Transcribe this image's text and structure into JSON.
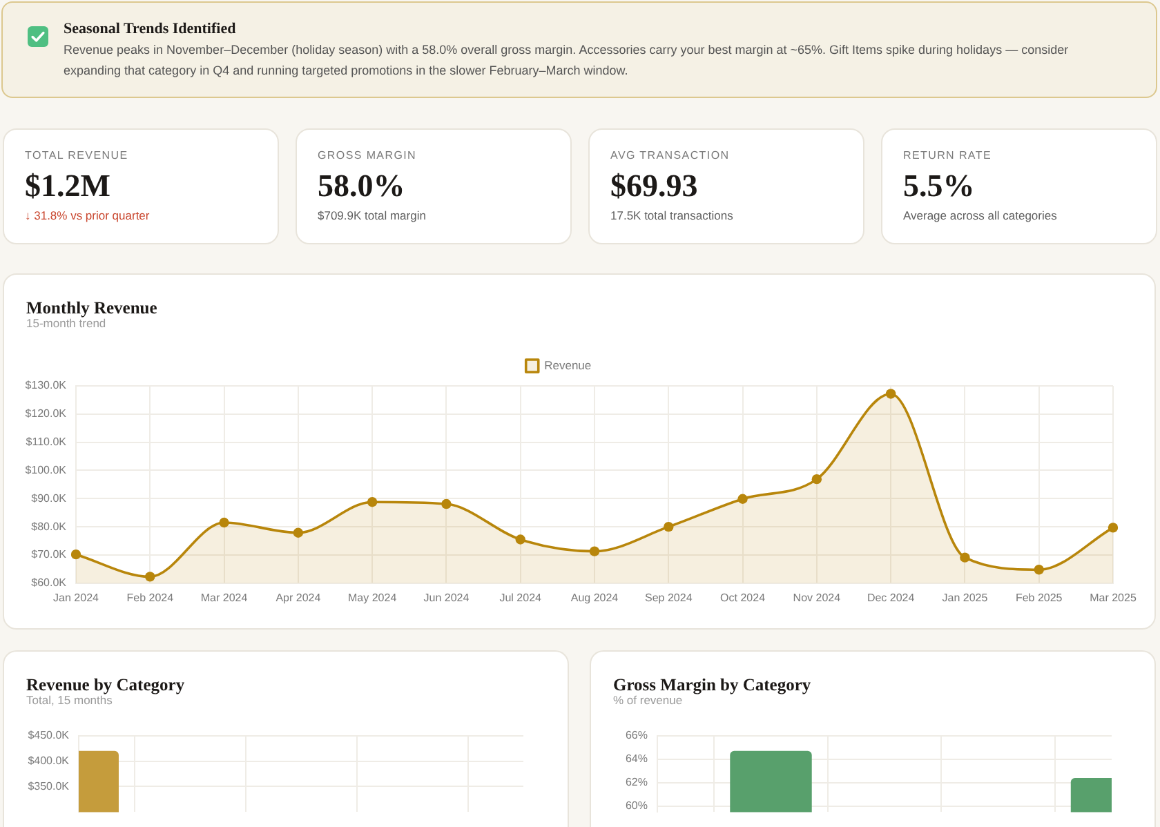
{
  "chart_data": [
    {
      "type": "other",
      "title": "Seasonal Trends Identified",
      "annotations": [
        "Revenue peaks in November–December (holiday season) with a 58.0% overall gross margin. Accessories carry your best margin at ~65%. Gift Items spike during holidays — consider expanding that category in Q4 and running targeted promotions in the slower February–March window."
      ]
    },
    {
      "type": "other",
      "title": "TOTAL REVENUE",
      "annotations": [
        "$1.2M",
        "↓ 31.8% vs prior quarter"
      ],
      "colors": [
        "#1c1917",
        "#c9472f"
      ]
    },
    {
      "type": "other",
      "title": "GROSS MARGIN",
      "annotations": [
        "58.0%",
        "$709.9K total margin"
      ],
      "colors": [
        "#1c1917",
        "#5f5f5f"
      ]
    },
    {
      "type": "other",
      "title": "AVG TRANSACTION",
      "annotations": [
        "$69.93",
        "17.5K total transactions"
      ],
      "colors": [
        "#1c1917",
        "#5f5f5f"
      ]
    },
    {
      "type": "other",
      "title": "RETURN RATE",
      "annotations": [
        "5.5%",
        "Average across all categories"
      ],
      "colors": [
        "#1c1917",
        "#5f5f5f"
      ]
    },
    {
      "type": "area",
      "title": "Monthly Revenue",
      "subtitle": "15-month trend",
      "categories": [
        "Jan 2024",
        "Feb 2024",
        "Mar 2024",
        "Apr 2024",
        "May 2024",
        "Jun 2024",
        "Jul 2024",
        "Aug 2024",
        "Sep 2024",
        "Oct 2024",
        "Nov 2024",
        "Dec 2024",
        "Jan 2025",
        "Feb 2025",
        "Mar 2025"
      ],
      "series": [
        {
          "name": "Revenue",
          "color": "#b8860b",
          "values": [
            70.2,
            62.3,
            81.5,
            77.9,
            88.8,
            88.1,
            75.5,
            71.3,
            80.0,
            89.9,
            96.9,
            127.2,
            69.1,
            64.8,
            79.7
          ]
        }
      ],
      "ylim": [
        60,
        130
      ],
      "yticks": [
        {
          "value": 60,
          "label": "$60.0K"
        },
        {
          "value": 70,
          "label": "$70.0K"
        },
        {
          "value": 80,
          "label": "$80.0K"
        },
        {
          "value": 90,
          "label": "$90.0K"
        },
        {
          "value": 100,
          "label": "$100.0K"
        },
        {
          "value": 110,
          "label": "$110.0K"
        },
        {
          "value": 120,
          "label": "$120.0K"
        },
        {
          "value": 130,
          "label": "$130.0K"
        }
      ],
      "grid": true,
      "legend": "top",
      "marker": "circle"
    },
    {
      "type": "bar",
      "title": "Revenue by Category",
      "subtitle": "Total, 15 months",
      "categories": [
        null,
        null,
        null,
        null,
        null
      ],
      "values": [
        420,
        null,
        null,
        null,
        null
      ],
      "color": "#c59c3c",
      "ylim": [
        300,
        450
      ],
      "yticks": [
        {
          "value": 350,
          "label": "$350.0K"
        },
        {
          "value": 400,
          "label": "$400.0K"
        },
        {
          "value": 450,
          "label": "$450.0K"
        }
      ],
      "grid": true,
      "tick_labels": "y"
    },
    {
      "type": "bar",
      "title": "Gross Margin by Category",
      "subtitle": "% of revenue",
      "categories": [
        null,
        null,
        null,
        null,
        null
      ],
      "values": [
        null,
        64.7,
        null,
        null,
        62.4
      ],
      "color": "#58a06c",
      "ylim": [
        59.5,
        66
      ],
      "yticks": [
        {
          "value": 60,
          "label": "60%"
        },
        {
          "value": 62,
          "label": "62%"
        },
        {
          "value": 64,
          "label": "64%"
        },
        {
          "value": 66,
          "label": "66%"
        }
      ],
      "grid": true,
      "tick_labels": "y"
    }
  ]
}
